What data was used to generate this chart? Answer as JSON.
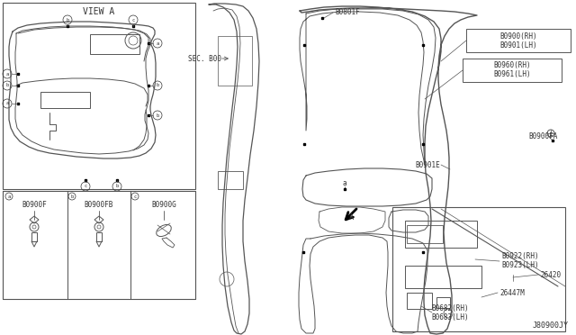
{
  "bg_color": "#ffffff",
  "line_color": "#555555",
  "text_color": "#333333",
  "thin_line": 0.6,
  "med_line": 0.9,
  "thick_line": 1.2,
  "labels": {
    "view_a": "VIEW A",
    "sec_b00": "SEC. B00",
    "b0801f": "B0801F",
    "b0900_rh": "B0900(RH)",
    "b0901_lh": "B0901(LH)",
    "b0960_rh": "B0960(RH)",
    "b0961_lh": "B0961(LH)",
    "b0900fa": "B0900FA",
    "b0901e": "B0901E",
    "b0922_rh": "B0922(RH)",
    "b0923_lh": "B0923(LH)",
    "b26420": "26420",
    "b26447m": "26447M",
    "b0682_rh": "B0682(RH)",
    "b0683_lh": "B0683(LH)",
    "j80900jy": "J80900JY",
    "b0900f": "B0900F",
    "b0900fb": "B0900FB",
    "b0900g": "B0900G"
  }
}
